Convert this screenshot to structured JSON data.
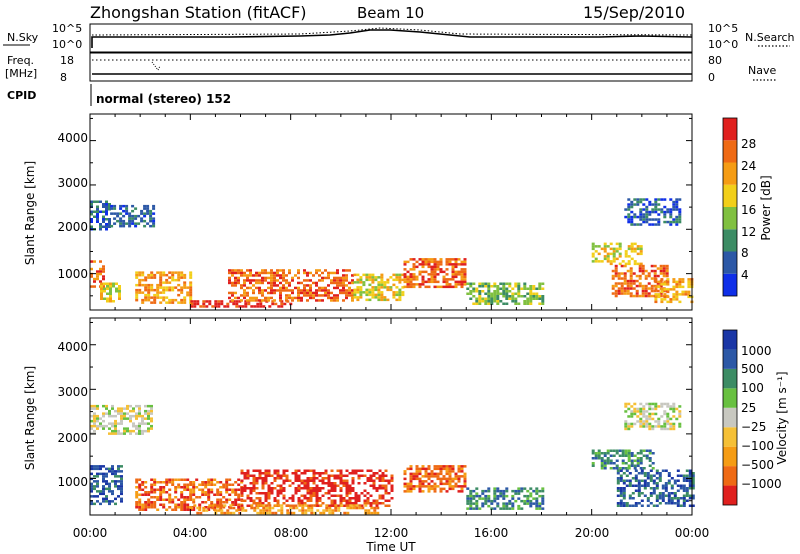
{
  "header": {
    "title": "Zhongshan Station (fitACF)",
    "beam": "Beam 10",
    "date": "15/Sep/2010"
  },
  "params": {
    "nsky_label": "N.Sky",
    "nsky_ticks": [
      "10^5",
      "10^0"
    ],
    "nsearch_label": "N.Search",
    "nsearch_ticks": [
      "10^5",
      "10^0"
    ],
    "freq_label": "Freq.",
    "freq_unit": "[MHz]",
    "freq_ticks": [
      "18",
      "8"
    ],
    "nave_label": "Nave",
    "nave_ticks": [
      "80",
      "0"
    ],
    "cpid_label": "CPID",
    "cpid_text": "normal (stereo) 152"
  },
  "colors": {
    "power": [
      "#0f2fe8",
      "#2c58a6",
      "#3c8c64",
      "#80c040",
      "#f2cf1a",
      "#f59c14",
      "#ef6a14",
      "#e0201e"
    ],
    "velocity": [
      "#e0201e",
      "#ef6a14",
      "#f59c14",
      "#f5c036",
      "#c8c8c0",
      "#68c040",
      "#3c8c64",
      "#2c58a6",
      "#1a36a6"
    ]
  },
  "chart_data": [
    {
      "type": "heatmap",
      "title": "Power",
      "ylabel": "Slant Range [km]",
      "y_ticks": [
        "1000",
        "2000",
        "3000",
        "4000"
      ],
      "ylim": [
        180,
        4600
      ],
      "xlim": [
        0,
        24
      ],
      "colorbar": {
        "label": "Power [dB]",
        "ticks": [
          "4",
          "8",
          "12",
          "16",
          "20",
          "24",
          "28"
        ],
        "range": [
          0,
          32
        ]
      },
      "regions": [
        {
          "t0": 0.0,
          "t1": 0.8,
          "r0": 2000,
          "r1": 2650,
          "level": 1
        },
        {
          "t0": 0.8,
          "t1": 2.5,
          "r0": 2050,
          "r1": 2550,
          "level": 1
        },
        {
          "t0": 0.0,
          "t1": 0.5,
          "r0": 700,
          "r1": 1300,
          "level": 6
        },
        {
          "t0": 0.4,
          "t1": 1.2,
          "r0": 350,
          "r1": 800,
          "level": 4
        },
        {
          "t0": 1.8,
          "t1": 4.0,
          "r0": 350,
          "r1": 1050,
          "level": 5
        },
        {
          "t0": 4.0,
          "t1": 8.0,
          "r0": 250,
          "r1": 400,
          "level": 7
        },
        {
          "t0": 5.5,
          "t1": 10.5,
          "r0": 400,
          "r1": 1100,
          "level": 6
        },
        {
          "t0": 10.5,
          "t1": 12.5,
          "r0": 400,
          "r1": 1000,
          "level": 4
        },
        {
          "t0": 12.5,
          "t1": 15.0,
          "r0": 700,
          "r1": 1350,
          "level": 6
        },
        {
          "t0": 15.0,
          "t1": 18.0,
          "r0": 300,
          "r1": 800,
          "level": 3
        },
        {
          "t0": 20.0,
          "t1": 22.0,
          "r0": 1200,
          "r1": 1700,
          "level": 4
        },
        {
          "t0": 20.8,
          "t1": 23.0,
          "r0": 500,
          "r1": 1200,
          "level": 6
        },
        {
          "t0": 22.5,
          "t1": 24.0,
          "r0": 350,
          "r1": 900,
          "level": 5
        },
        {
          "t0": 21.3,
          "t1": 23.5,
          "r0": 2100,
          "r1": 2700,
          "level": 1
        }
      ]
    },
    {
      "type": "heatmap",
      "title": "Velocity",
      "ylabel": "Slant Range [km]",
      "y_ticks": [
        "1000",
        "2000",
        "3000",
        "4000"
      ],
      "ylim": [
        180,
        4600
      ],
      "xlim": [
        0,
        24
      ],
      "xlabel": "Time UT",
      "x_ticks": [
        "00:00",
        "04:00",
        "08:00",
        "12:00",
        "16:00",
        "20:00",
        "00:00"
      ],
      "colorbar": {
        "label": "Velocity [m s⁻¹]",
        "ticks": [
          "1000",
          "500",
          "100",
          "25",
          "−25",
          "−100",
          "−500",
          "−1000"
        ]
      },
      "regions": [
        {
          "t0": 0.0,
          "t1": 2.5,
          "r0": 2000,
          "r1": 2650,
          "level": 4
        },
        {
          "t0": 0.0,
          "t1": 1.2,
          "r0": 450,
          "r1": 1300,
          "level": 7
        },
        {
          "t0": 1.8,
          "t1": 6.0,
          "r0": 300,
          "r1": 1000,
          "level": 1
        },
        {
          "t0": 6.0,
          "t1": 12.0,
          "r0": 400,
          "r1": 1200,
          "level": 0
        },
        {
          "t0": 4.0,
          "t1": 11.5,
          "r0": 250,
          "r1": 420,
          "level": 2
        },
        {
          "t0": 12.5,
          "t1": 15.0,
          "r0": 700,
          "r1": 1300,
          "level": 1
        },
        {
          "t0": 15.0,
          "t1": 18.0,
          "r0": 300,
          "r1": 800,
          "level": 6
        },
        {
          "t0": 20.0,
          "t1": 22.5,
          "r0": 1250,
          "r1": 1650,
          "level": 6
        },
        {
          "t0": 21.0,
          "t1": 24.0,
          "r0": 400,
          "r1": 1200,
          "level": 7
        },
        {
          "t0": 21.3,
          "t1": 23.5,
          "r0": 2100,
          "r1": 2700,
          "level": 4
        }
      ]
    }
  ]
}
